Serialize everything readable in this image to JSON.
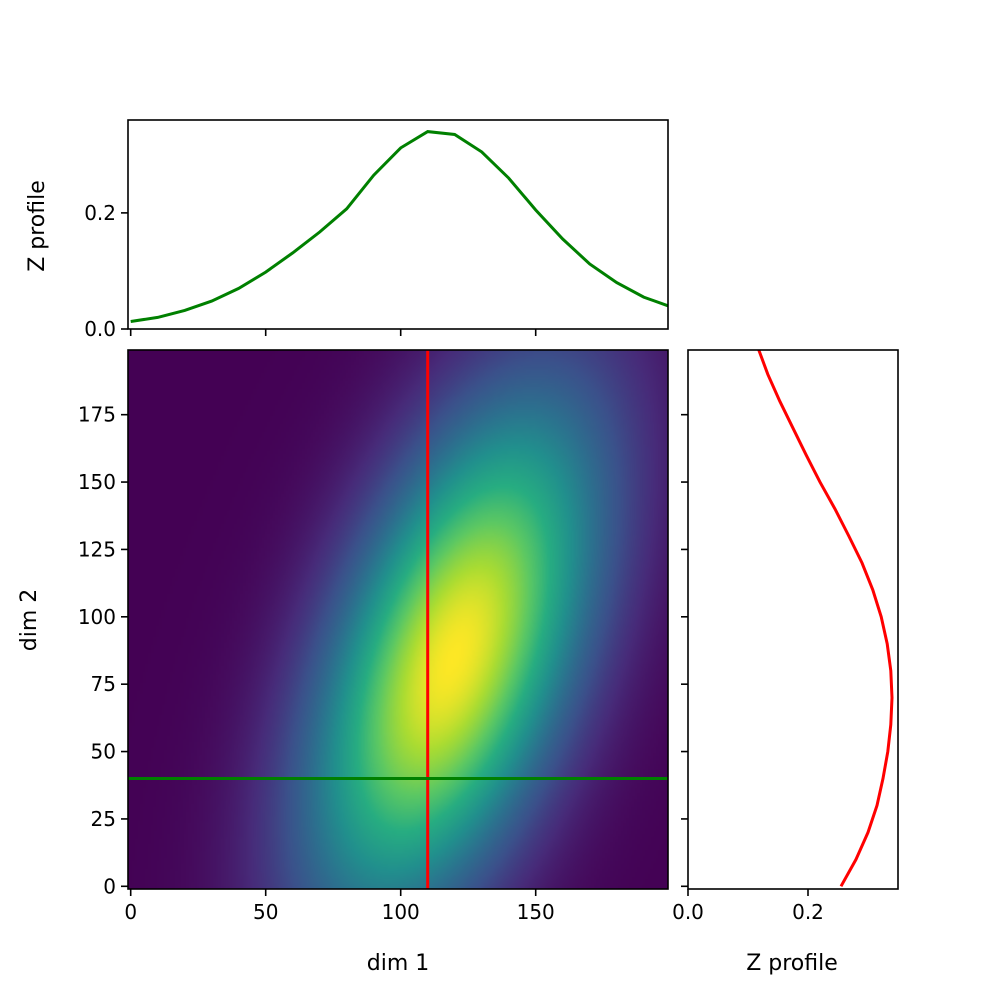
{
  "chart_data": {
    "type": "heatmap",
    "colormap": "viridis",
    "grid": false,
    "main": {
      "xlabel": "dim 1",
      "ylabel": "dim 2",
      "xlim": [
        -1,
        199
      ],
      "ylim": [
        -1,
        199
      ],
      "xticks": [
        0,
        50,
        100,
        150
      ],
      "xtick_labels": [
        "0",
        "50",
        "100",
        "150"
      ],
      "yticks": [
        0,
        25,
        50,
        75,
        100,
        125,
        150,
        175
      ],
      "ytick_labels": [
        "0",
        "25",
        "50",
        "75",
        "100",
        "125",
        "150",
        "175"
      ],
      "field": {
        "kind": "rotated-gaussian",
        "peak": [
          120,
          85
        ],
        "sigma_major": 70,
        "sigma_minor": 30,
        "tilt_deg": 20
      },
      "crosshair_vertical": {
        "x": 110,
        "color": "#ff0000"
      },
      "crosshair_horizontal": {
        "y": 40,
        "color": "#008000"
      }
    },
    "top_profile": {
      "type": "line",
      "ylabel": "Z profile",
      "ylim": [
        0,
        0.36
      ],
      "yticks": [
        0.0,
        0.2
      ],
      "ytick_labels": [
        "0.0",
        "0.2"
      ],
      "color": "#008000",
      "x": [
        0,
        10,
        20,
        30,
        40,
        50,
        60,
        70,
        80,
        90,
        100,
        110,
        120,
        130,
        140,
        150,
        160,
        170,
        180,
        190,
        199
      ],
      "y": [
        0.013,
        0.02,
        0.032,
        0.048,
        0.07,
        0.098,
        0.131,
        0.167,
        0.207,
        0.265,
        0.312,
        0.34,
        0.335,
        0.305,
        0.26,
        0.205,
        0.155,
        0.112,
        0.08,
        0.055,
        0.04
      ]
    },
    "right_profile": {
      "type": "line",
      "xlabel": "Z profile",
      "xlim": [
        0,
        0.35
      ],
      "xticks": [
        0.0,
        0.2
      ],
      "xtick_labels": [
        "0.0",
        "0.2"
      ],
      "color": "#ff0000",
      "y": [
        0,
        10,
        20,
        30,
        40,
        50,
        60,
        70,
        80,
        90,
        100,
        110,
        120,
        130,
        140,
        150,
        160,
        170,
        180,
        190,
        199
      ],
      "x": [
        0.255,
        0.28,
        0.3,
        0.315,
        0.325,
        0.333,
        0.338,
        0.34,
        0.338,
        0.332,
        0.322,
        0.308,
        0.29,
        0.268,
        0.245,
        0.22,
        0.197,
        0.175,
        0.153,
        0.133,
        0.118
      ]
    }
  }
}
